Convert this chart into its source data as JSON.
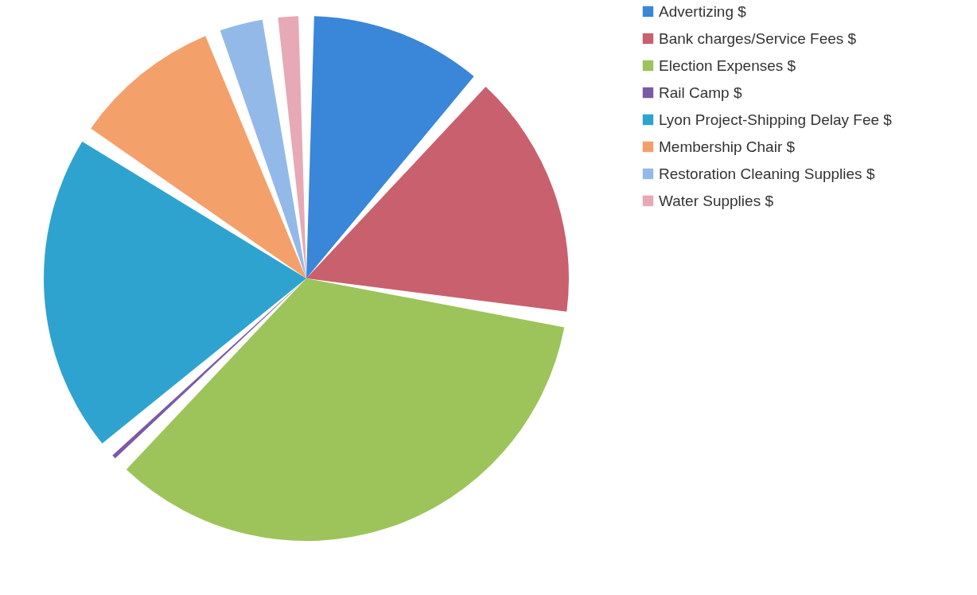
{
  "chart_data": {
    "type": "pie",
    "categories": [
      "Advertizing $",
      "Bank charges/Service Fees $",
      "Election Expenses $",
      "Rail Camp $",
      "Lyon Project-Shipping Delay Fee $",
      "Membership Chair $",
      "Restoration Cleaning Supplies $",
      "Water Supplies $"
    ],
    "values": [
      11.5,
      16,
      35,
      1.2,
      20.5,
      10,
      3.6,
      2.2
    ],
    "colors": [
      "#3a86d8",
      "#c9606e",
      "#9cc45a",
      "#7a5aa6",
      "#2ea3d0",
      "#f4a06a",
      "#93b9e8",
      "#e6a9b5"
    ],
    "legend": "right"
  }
}
